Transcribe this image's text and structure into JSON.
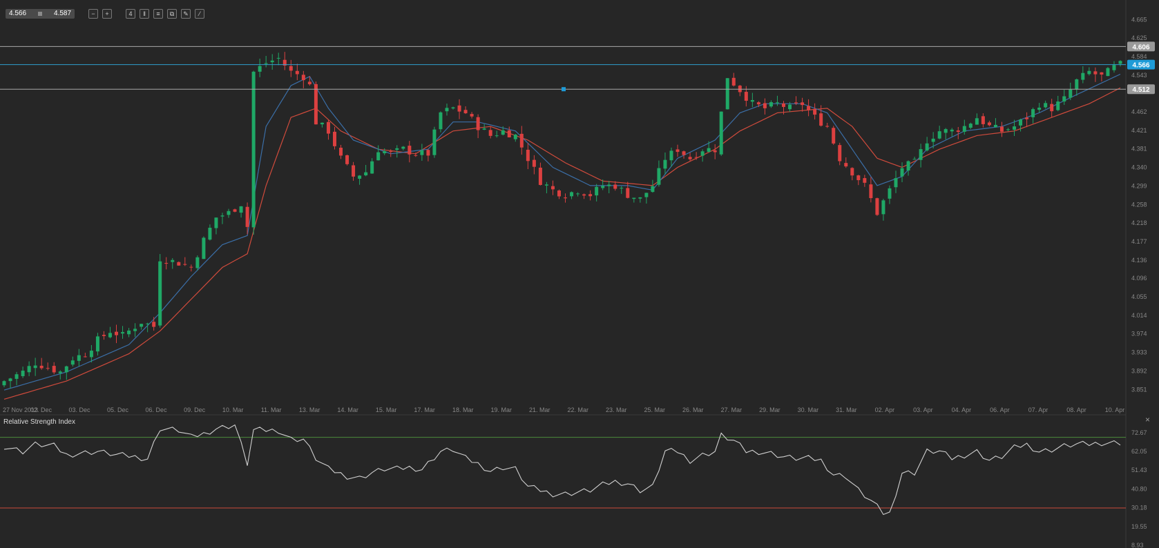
{
  "header": {
    "bid": "4.566",
    "ask": "4.587",
    "tools": [
      {
        "icon": "zoom-out-icon",
        "glyph": "−"
      },
      {
        "icon": "zoom-in-icon",
        "glyph": "+"
      },
      {
        "icon": "timeframe-icon",
        "glyph": "4"
      },
      {
        "icon": "candles-icon",
        "glyph": "‖"
      },
      {
        "icon": "bars-icon",
        "glyph": "≡"
      },
      {
        "icon": "copy-icon",
        "glyph": "⧉"
      },
      {
        "icon": "edit-icon",
        "glyph": "✎"
      },
      {
        "icon": "draw-icon",
        "glyph": "⁄"
      }
    ]
  },
  "rsi_panel": {
    "title": "Relative Strength Index",
    "close": "×"
  },
  "colors": {
    "background": "#262626",
    "bull": "#1fa866",
    "bear": "#dc4040",
    "ma_fast": "#3b6fa8",
    "ma_slow": "#d14b3c",
    "hline": "#aaaaaa",
    "cur_line": "#2f9fd0",
    "rsi_line": "#d0d0d0",
    "rsi_upper": "#4c8c3c",
    "rsi_lower": "#cc4a3a"
  },
  "chart_data": [
    {
      "type": "candlestick",
      "ylim": [
        3.82,
        4.69
      ],
      "yticks": [
        "4.665",
        "4.625",
        "4.584",
        "4.543",
        "4.462",
        "4.421",
        "4.381",
        "4.340",
        "4.299",
        "4.258",
        "4.218",
        "4.177",
        "4.136",
        "4.096",
        "4.055",
        "4.014",
        "3.974",
        "3.933",
        "3.892",
        "3.851"
      ],
      "xticks": [
        "27 Nov 2013",
        "02. Dec",
        "03. Dec",
        "05. Dec",
        "06. Dec",
        "09. Dec",
        "10. Mar",
        "11. Mar",
        "13. Mar",
        "14. Mar",
        "15. Mar",
        "17. Mar",
        "18. Mar",
        "19. Mar",
        "21. Mar",
        "22. Mar",
        "23. Mar",
        "25. Mar",
        "26. Mar",
        "27. Mar",
        "29. Mar",
        "30. Mar",
        "31. Mar",
        "02. Apr",
        "03. Apr",
        "04. Apr",
        "06. Apr",
        "07. Apr",
        "08. Apr",
        "10. Apr"
      ],
      "price_labels": [
        {
          "text": "4.606",
          "value": 4.606,
          "kind": "hline"
        },
        {
          "text": "4.566",
          "value": 4.566,
          "kind": "current"
        },
        {
          "text": "4.512",
          "value": 4.512,
          "kind": "hline"
        }
      ],
      "close_path": [
        [
          0,
          3.87
        ],
        [
          3,
          3.89
        ],
        [
          5,
          3.91
        ],
        [
          7,
          3.9
        ],
        [
          9,
          3.89
        ],
        [
          11,
          3.92
        ],
        [
          13,
          3.93
        ],
        [
          15,
          3.96
        ],
        [
          17,
          3.98
        ],
        [
          19,
          3.97
        ],
        [
          21,
          3.99
        ],
        [
          22,
          4.0
        ],
        [
          24,
          3.99
        ],
        [
          25,
          4.14
        ],
        [
          28,
          4.13
        ],
        [
          30,
          4.12
        ],
        [
          32,
          4.18
        ],
        [
          34,
          4.23
        ],
        [
          36,
          4.24
        ],
        [
          38,
          4.26
        ],
        [
          39,
          4.21
        ],
        [
          40,
          4.55
        ],
        [
          42,
          4.57
        ],
        [
          44,
          4.58
        ],
        [
          46,
          4.55
        ],
        [
          48,
          4.54
        ],
        [
          49,
          4.52
        ],
        [
          50,
          4.44
        ],
        [
          52,
          4.42
        ],
        [
          54,
          4.36
        ],
        [
          56,
          4.32
        ],
        [
          58,
          4.33
        ],
        [
          60,
          4.38
        ],
        [
          62,
          4.37
        ],
        [
          64,
          4.38
        ],
        [
          66,
          4.37
        ],
        [
          68,
          4.37
        ],
        [
          70,
          4.46
        ],
        [
          72,
          4.47
        ],
        [
          74,
          4.46
        ],
        [
          76,
          4.43
        ],
        [
          78,
          4.41
        ],
        [
          80,
          4.42
        ],
        [
          82,
          4.41
        ],
        [
          84,
          4.36
        ],
        [
          86,
          4.31
        ],
        [
          88,
          4.29
        ],
        [
          90,
          4.28
        ],
        [
          92,
          4.29
        ],
        [
          94,
          4.28
        ],
        [
          96,
          4.3
        ],
        [
          98,
          4.3
        ],
        [
          100,
          4.28
        ],
        [
          102,
          4.27
        ],
        [
          104,
          4.3
        ],
        [
          106,
          4.36
        ],
        [
          108,
          4.38
        ],
        [
          110,
          4.36
        ],
        [
          112,
          4.38
        ],
        [
          114,
          4.38
        ],
        [
          116,
          4.54
        ],
        [
          118,
          4.51
        ],
        [
          120,
          4.48
        ],
        [
          122,
          4.47
        ],
        [
          124,
          4.48
        ],
        [
          126,
          4.47
        ],
        [
          128,
          4.48
        ],
        [
          130,
          4.45
        ],
        [
          132,
          4.43
        ],
        [
          134,
          4.36
        ],
        [
          136,
          4.33
        ],
        [
          138,
          4.3
        ],
        [
          140,
          4.24
        ],
        [
          142,
          4.29
        ],
        [
          144,
          4.34
        ],
        [
          146,
          4.35
        ],
        [
          148,
          4.4
        ],
        [
          150,
          4.42
        ],
        [
          152,
          4.42
        ],
        [
          154,
          4.43
        ],
        [
          156,
          4.45
        ],
        [
          158,
          4.43
        ],
        [
          160,
          4.42
        ],
        [
          162,
          4.43
        ],
        [
          164,
          4.45
        ],
        [
          166,
          4.48
        ],
        [
          168,
          4.47
        ],
        [
          170,
          4.49
        ],
        [
          172,
          4.53
        ],
        [
          174,
          4.55
        ],
        [
          176,
          4.54
        ],
        [
          178,
          4.56
        ],
        [
          179,
          4.566
        ]
      ],
      "n_bars": 180,
      "ma_fast_path": [
        [
          0,
          3.85
        ],
        [
          10,
          3.89
        ],
        [
          20,
          3.95
        ],
        [
          25,
          4.02
        ],
        [
          30,
          4.1
        ],
        [
          35,
          4.17
        ],
        [
          39,
          4.19
        ],
        [
          42,
          4.43
        ],
        [
          46,
          4.52
        ],
        [
          49,
          4.54
        ],
        [
          52,
          4.47
        ],
        [
          56,
          4.4
        ],
        [
          62,
          4.37
        ],
        [
          68,
          4.38
        ],
        [
          72,
          4.44
        ],
        [
          76,
          4.44
        ],
        [
          82,
          4.42
        ],
        [
          88,
          4.34
        ],
        [
          94,
          4.3
        ],
        [
          100,
          4.3
        ],
        [
          104,
          4.29
        ],
        [
          108,
          4.36
        ],
        [
          114,
          4.4
        ],
        [
          118,
          4.46
        ],
        [
          122,
          4.48
        ],
        [
          128,
          4.48
        ],
        [
          132,
          4.46
        ],
        [
          136,
          4.38
        ],
        [
          140,
          4.3
        ],
        [
          144,
          4.32
        ],
        [
          148,
          4.38
        ],
        [
          154,
          4.42
        ],
        [
          160,
          4.43
        ],
        [
          166,
          4.46
        ],
        [
          172,
          4.5
        ],
        [
          179,
          4.545
        ]
      ],
      "ma_slow_path": [
        [
          0,
          3.83
        ],
        [
          10,
          3.87
        ],
        [
          20,
          3.93
        ],
        [
          25,
          3.98
        ],
        [
          30,
          4.05
        ],
        [
          35,
          4.12
        ],
        [
          39,
          4.15
        ],
        [
          42,
          4.3
        ],
        [
          46,
          4.45
        ],
        [
          50,
          4.47
        ],
        [
          54,
          4.42
        ],
        [
          60,
          4.38
        ],
        [
          66,
          4.37
        ],
        [
          72,
          4.42
        ],
        [
          78,
          4.43
        ],
        [
          84,
          4.4
        ],
        [
          90,
          4.35
        ],
        [
          96,
          4.31
        ],
        [
          104,
          4.3
        ],
        [
          108,
          4.34
        ],
        [
          114,
          4.38
        ],
        [
          118,
          4.42
        ],
        [
          124,
          4.46
        ],
        [
          132,
          4.47
        ],
        [
          136,
          4.43
        ],
        [
          140,
          4.36
        ],
        [
          144,
          4.34
        ],
        [
          150,
          4.38
        ],
        [
          156,
          4.41
        ],
        [
          162,
          4.42
        ],
        [
          168,
          4.45
        ],
        [
          174,
          4.48
        ],
        [
          179,
          4.515
        ]
      ]
    },
    {
      "type": "line",
      "title": "Relative Strength Index",
      "ylim": [
        8.93,
        80
      ],
      "yticks": [
        "72.67",
        "62.05",
        "51.43",
        "40.80",
        "30.18",
        "19.55",
        "8.93"
      ],
      "levels": [
        70,
        30
      ],
      "values_path": [
        [
          0,
          65
        ],
        [
          3,
          62
        ],
        [
          5,
          66
        ],
        [
          8,
          65
        ],
        [
          10,
          60
        ],
        [
          12,
          61
        ],
        [
          15,
          62
        ],
        [
          18,
          60
        ],
        [
          21,
          59
        ],
        [
          23,
          58
        ],
        [
          25,
          75
        ],
        [
          28,
          74
        ],
        [
          30,
          70
        ],
        [
          32,
          72
        ],
        [
          34,
          75
        ],
        [
          37,
          77
        ],
        [
          39,
          55
        ],
        [
          40,
          74
        ],
        [
          42,
          74
        ],
        [
          44,
          74
        ],
        [
          46,
          69
        ],
        [
          48,
          69
        ],
        [
          50,
          58
        ],
        [
          52,
          52
        ],
        [
          55,
          48
        ],
        [
          57,
          47
        ],
        [
          59,
          50
        ],
        [
          61,
          52
        ],
        [
          63,
          52
        ],
        [
          65,
          53
        ],
        [
          67,
          52
        ],
        [
          70,
          62
        ],
        [
          72,
          63
        ],
        [
          74,
          58
        ],
        [
          76,
          55
        ],
        [
          78,
          51
        ],
        [
          80,
          53
        ],
        [
          82,
          52
        ],
        [
          84,
          42
        ],
        [
          86,
          40
        ],
        [
          88,
          38
        ],
        [
          90,
          38
        ],
        [
          92,
          39
        ],
        [
          94,
          40
        ],
        [
          96,
          43
        ],
        [
          98,
          45
        ],
        [
          100,
          44
        ],
        [
          102,
          40
        ],
        [
          104,
          42
        ],
        [
          106,
          62
        ],
        [
          108,
          62
        ],
        [
          110,
          57
        ],
        [
          112,
          60
        ],
        [
          114,
          62
        ],
        [
          115,
          71
        ],
        [
          117,
          68
        ],
        [
          119,
          62
        ],
        [
          121,
          62
        ],
        [
          123,
          61
        ],
        [
          125,
          59
        ],
        [
          127,
          58
        ],
        [
          129,
          58
        ],
        [
          131,
          57
        ],
        [
          133,
          49
        ],
        [
          135,
          48
        ],
        [
          137,
          40
        ],
        [
          139,
          34
        ],
        [
          141,
          27
        ],
        [
          142,
          27
        ],
        [
          144,
          50
        ],
        [
          146,
          50
        ],
        [
          148,
          62
        ],
        [
          150,
          62
        ],
        [
          152,
          58
        ],
        [
          154,
          60
        ],
        [
          156,
          62
        ],
        [
          158,
          57
        ],
        [
          160,
          59
        ],
        [
          162,
          64
        ],
        [
          164,
          66
        ],
        [
          166,
          62
        ],
        [
          168,
          63
        ],
        [
          170,
          65
        ],
        [
          172,
          66
        ],
        [
          174,
          66
        ],
        [
          176,
          67
        ],
        [
          179,
          67
        ]
      ]
    }
  ]
}
